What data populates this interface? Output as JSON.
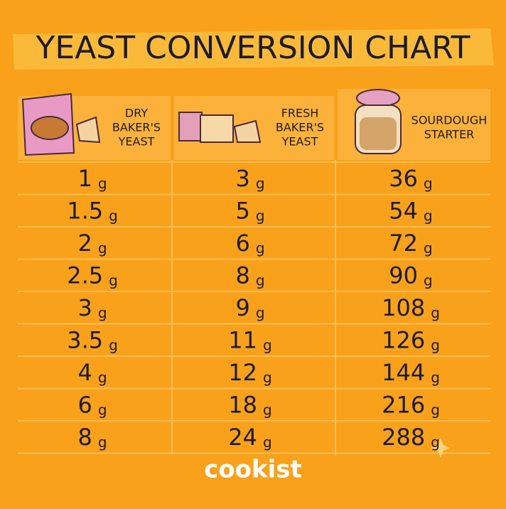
{
  "header": {
    "title": "YEAST CONVERSION CHART"
  },
  "table": {
    "columns": [
      {
        "lines": [
          "DRY",
          "BAKER'S",
          "YEAST"
        ]
      },
      {
        "lines": [
          "FRESH",
          "BAKER'S",
          "YEAST"
        ]
      },
      {
        "lines": [
          "SOURDOUGH",
          "STARTER"
        ]
      }
    ],
    "unit": "g",
    "rows": [
      [
        1,
        3,
        36
      ],
      [
        1.5,
        5,
        54
      ],
      [
        2,
        6,
        72
      ],
      [
        2.5,
        8,
        90
      ],
      [
        3,
        9,
        108
      ],
      [
        3.5,
        11,
        126
      ],
      [
        4,
        12,
        144
      ],
      [
        6,
        18,
        216
      ],
      [
        8,
        24,
        288
      ]
    ]
  },
  "footer": {
    "brand": "cookist"
  }
}
